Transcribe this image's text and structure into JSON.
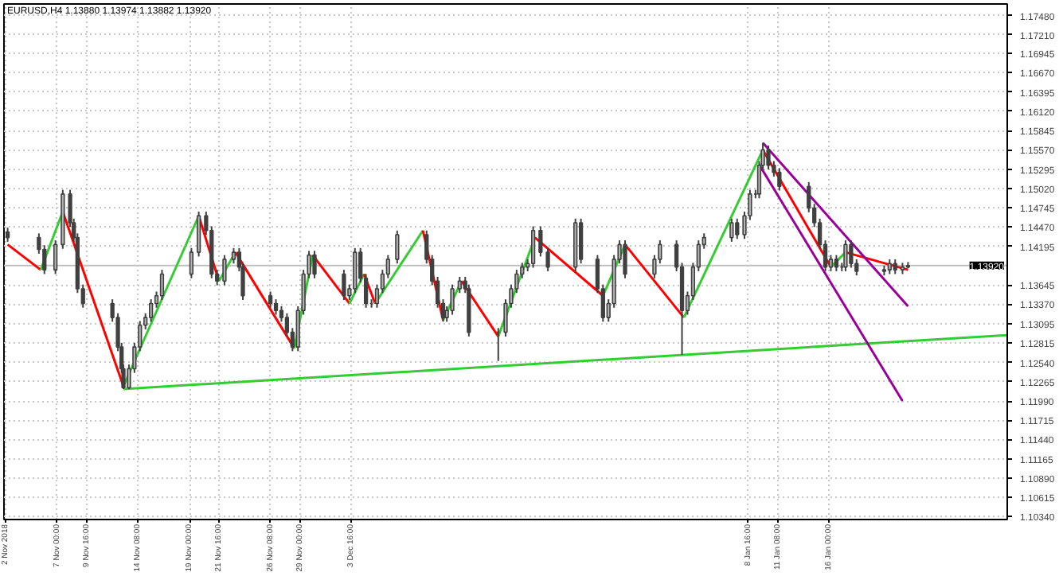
{
  "chart_data": {
    "type": "candlestick",
    "title": "EURUSD,H4  1.13880 1.13974 1.13882 1.13920",
    "color": "#404040",
    "x": [
      "2018-11-02T12:00",
      "2018-11-05T08:00",
      "2018-11-05T20:00",
      "2018-11-06T20:00",
      "2018-11-07T12:00",
      "2018-11-08T04:00",
      "2018-11-08T12:00",
      "2018-11-08T20:00",
      "2018-11-09T08:00",
      "2018-11-12T00:00",
      "2018-11-12T12:00",
      "2018-11-12T20:00",
      "2018-11-13T00:00",
      "2018-11-13T12:00",
      "2018-11-14T00:00",
      "2018-11-14T12:00",
      "2018-11-15T00:00",
      "2018-11-15T12:00",
      "2018-11-16T00:00",
      "2018-11-16T12:00",
      "2018-11-19T04:00",
      "2018-11-19T20:00",
      "2018-11-20T12:00",
      "2018-11-21T00:00",
      "2018-11-21T12:00",
      "2018-11-22T04:00",
      "2018-11-23T00:00",
      "2018-11-23T12:00",
      "2018-11-23T20:00",
      "2018-11-26T08:00",
      "2018-11-26T20:00",
      "2018-11-27T08:00",
      "2018-11-27T20:00",
      "2018-11-28T08:00",
      "2018-11-28T20:00",
      "2018-11-29T08:00",
      "2018-11-29T20:00",
      "2018-11-30T08:00",
      "2018-12-03T00:00",
      "2018-12-03T12:00",
      "2018-12-04T00:00",
      "2018-12-04T12:00",
      "2018-12-05T00:00",
      "2018-12-05T12:00",
      "2018-12-06T00:00",
      "2018-12-06T12:00",
      "2018-12-07T00:00",
      "2018-12-07T20:00",
      "2018-12-10T12:00",
      "2018-12-11T00:00",
      "2018-12-11T12:00",
      "2018-12-12T00:00",
      "2018-12-12T08:00",
      "2018-12-12T20:00",
      "2018-12-13T12:00",
      "2018-12-14T00:00",
      "2018-12-14T08:00",
      "2018-12-17T00:00",
      "2018-12-17T16:00",
      "2018-12-18T04:00",
      "2018-12-18T16:00",
      "2018-12-19T04:00",
      "2018-12-19T16:00",
      "2018-12-20T04:00",
      "2018-12-20T20:00",
      "2018-12-21T12:00",
      "2018-12-24T00:00",
      "2018-12-24T12:00",
      "2018-12-26T00:00",
      "2018-12-26T12:00",
      "2018-12-27T00:00",
      "2018-12-27T12:00",
      "2018-12-28T00:00",
      "2018-12-28T12:00",
      "2018-12-31T04:00",
      "2018-12-31T16:00",
      "2019-01-02T04:00",
      "2019-01-02T16:00",
      "2019-01-03T04:00",
      "2019-01-03T16:00",
      "2019-01-04T04:00",
      "2019-01-04T16:00",
      "2019-01-07T04:00",
      "2019-01-07T16:00",
      "2019-01-08T08:00",
      "2019-01-08T20:00",
      "2019-01-09T08:00",
      "2019-01-09T16:00",
      "2019-01-10T00:00",
      "2019-01-10T12:00",
      "2019-01-11T00:00",
      "2019-01-11T12:00",
      "2019-01-14T04:00",
      "2019-01-14T16:00",
      "2019-01-15T04:00",
      "2019-01-15T16:00",
      "2019-01-16T04:00",
      "2019-01-16T16:00",
      "2019-01-17T04:00",
      "2019-01-17T12:00",
      "2019-01-18T00:00",
      "2019-01-18T12:00",
      "2019-01-21T00:00",
      "2019-01-21T12:00",
      "2019-01-22T00:00",
      "2019-01-22T16:00",
      "2019-01-23T04:00"
    ],
    "ohlc": [
      [
        1.144,
        1.1446,
        1.1426,
        1.1432
      ],
      [
        1.1432,
        1.1438,
        1.1409,
        1.1415
      ],
      [
        1.1415,
        1.1421,
        1.138,
        1.1386
      ],
      [
        1.1386,
        1.1428,
        1.138,
        1.1422
      ],
      [
        1.1422,
        1.15,
        1.1416,
        1.1494
      ],
      [
        1.1494,
        1.15,
        1.1447,
        1.1453
      ],
      [
        1.1453,
        1.1459,
        1.1426,
        1.1432
      ],
      [
        1.1432,
        1.1438,
        1.1353,
        1.1359
      ],
      [
        1.1359,
        1.1365,
        1.1332,
        1.1338
      ],
      [
        1.1338,
        1.1344,
        1.1312,
        1.1318
      ],
      [
        1.1318,
        1.1324,
        1.127,
        1.1276
      ],
      [
        1.1276,
        1.1282,
        1.1239,
        1.1245
      ],
      [
        1.1245,
        1.1251,
        1.1216,
        1.1218
      ],
      [
        1.1218,
        1.1251,
        1.1216,
        1.1245
      ],
      [
        1.1245,
        1.1282,
        1.1239,
        1.1276
      ],
      [
        1.1276,
        1.1313,
        1.127,
        1.1307
      ],
      [
        1.1307,
        1.1324,
        1.1301,
        1.1318
      ],
      [
        1.1318,
        1.1344,
        1.1312,
        1.1338
      ],
      [
        1.1338,
        1.1355,
        1.1332,
        1.1349
      ],
      [
        1.1349,
        1.1386,
        1.1343,
        1.138
      ],
      [
        1.138,
        1.1417,
        1.1374,
        1.1411
      ],
      [
        1.1411,
        1.1469,
        1.1405,
        1.1463
      ],
      [
        1.1463,
        1.1469,
        1.1436,
        1.1442
      ],
      [
        1.1442,
        1.1448,
        1.1374,
        1.138
      ],
      [
        1.138,
        1.1386,
        1.1364,
        1.137
      ],
      [
        1.137,
        1.1407,
        1.1364,
        1.1401
      ],
      [
        1.1401,
        1.1417,
        1.1395,
        1.1411
      ],
      [
        1.1411,
        1.1417,
        1.1384,
        1.139
      ],
      [
        1.139,
        1.1396,
        1.1343,
        1.1349
      ],
      [
        1.1349,
        1.1355,
        1.1332,
        1.1338
      ],
      [
        1.1338,
        1.1344,
        1.1322,
        1.1328
      ],
      [
        1.1328,
        1.1334,
        1.1312,
        1.1318
      ],
      [
        1.1318,
        1.1324,
        1.1291,
        1.1297
      ],
      [
        1.1297,
        1.1303,
        1.127,
        1.1276
      ],
      [
        1.1276,
        1.1334,
        1.127,
        1.1328
      ],
      [
        1.1328,
        1.1386,
        1.1322,
        1.138
      ],
      [
        1.138,
        1.1413,
        1.1374,
        1.1407
      ],
      [
        1.1407,
        1.1413,
        1.1374,
        1.138
      ],
      [
        1.138,
        1.1386,
        1.1343,
        1.1349
      ],
      [
        1.1349,
        1.1365,
        1.1343,
        1.1359
      ],
      [
        1.1359,
        1.1417,
        1.1353,
        1.1411
      ],
      [
        1.1411,
        1.1417,
        1.1368,
        1.1374
      ],
      [
        1.1374,
        1.138,
        1.1332,
        1.1338
      ],
      [
        1.1338,
        1.1344,
        1.1332,
        1.1338
      ],
      [
        1.1338,
        1.1365,
        1.1332,
        1.1359
      ],
      [
        1.1359,
        1.1386,
        1.1353,
        1.138
      ],
      [
        1.138,
        1.1407,
        1.1374,
        1.1401
      ],
      [
        1.1401,
        1.1442,
        1.1395,
        1.1436
      ],
      [
        1.1436,
        1.1442,
        1.1395,
        1.1401
      ],
      [
        1.1401,
        1.1407,
        1.1364,
        1.137
      ],
      [
        1.137,
        1.1376,
        1.1332,
        1.1338
      ],
      [
        1.1338,
        1.1344,
        1.1312,
        1.1318
      ],
      [
        1.1318,
        1.1334,
        1.1312,
        1.1328
      ],
      [
        1.1328,
        1.1365,
        1.1322,
        1.1359
      ],
      [
        1.1359,
        1.1376,
        1.1353,
        1.137
      ],
      [
        1.137,
        1.1376,
        1.1353,
        1.1359
      ],
      [
        1.1359,
        1.1365,
        1.1291,
        1.1297
      ],
      [
        1.1297,
        1.1303,
        1.1256,
        1.1297
      ],
      [
        1.1297,
        1.1344,
        1.1291,
        1.1338
      ],
      [
        1.1338,
        1.1365,
        1.1332,
        1.1359
      ],
      [
        1.1359,
        1.1386,
        1.1353,
        1.138
      ],
      [
        1.138,
        1.1396,
        1.1374,
        1.139
      ],
      [
        1.139,
        1.1401,
        1.1384,
        1.1395
      ],
      [
        1.1395,
        1.1448,
        1.1389,
        1.1442
      ],
      [
        1.1442,
        1.1448,
        1.1405,
        1.1411
      ],
      [
        1.1411,
        1.1417,
        1.1384,
        1.139
      ],
      [
        1.139,
        1.1459,
        1.1384,
        1.1453
      ],
      [
        1.1453,
        1.1459,
        1.1395,
        1.1401
      ],
      [
        1.1401,
        1.1407,
        1.1353,
        1.1359
      ],
      [
        1.1359,
        1.1365,
        1.1312,
        1.1318
      ],
      [
        1.1318,
        1.1344,
        1.1312,
        1.1338
      ],
      [
        1.1338,
        1.1407,
        1.1332,
        1.1401
      ],
      [
        1.1401,
        1.1428,
        1.1395,
        1.1422
      ],
      [
        1.1422,
        1.1428,
        1.1374,
        1.138
      ],
      [
        1.138,
        1.1407,
        1.1374,
        1.1401
      ],
      [
        1.1401,
        1.1428,
        1.1395,
        1.1422
      ],
      [
        1.1422,
        1.1428,
        1.1384,
        1.139
      ],
      [
        1.139,
        1.1396,
        1.1265,
        1.1328
      ],
      [
        1.1328,
        1.1355,
        1.1322,
        1.1349
      ],
      [
        1.1349,
        1.1396,
        1.1343,
        1.139
      ],
      [
        1.139,
        1.1428,
        1.1384,
        1.1422
      ],
      [
        1.1422,
        1.1438,
        1.1416,
        1.1432
      ],
      [
        1.1432,
        1.1459,
        1.1426,
        1.1453
      ],
      [
        1.1453,
        1.1459,
        1.143,
        1.1436
      ],
      [
        1.1436,
        1.1469,
        1.143,
        1.1463
      ],
      [
        1.1463,
        1.15,
        1.1457,
        1.1494
      ],
      [
        1.1494,
        1.15,
        1.1488,
        1.1494
      ],
      [
        1.1494,
        1.1541,
        1.1488,
        1.1535
      ],
      [
        1.1535,
        1.1567,
        1.1529,
        1.1557
      ],
      [
        1.1557,
        1.1563,
        1.1529,
        1.1535
      ],
      [
        1.1535,
        1.1541,
        1.1519,
        1.1525
      ],
      [
        1.1525,
        1.1531,
        1.1499,
        1.1505
      ],
      [
        1.1505,
        1.1511,
        1.1468,
        1.1474
      ],
      [
        1.1474,
        1.148,
        1.1447,
        1.1453
      ],
      [
        1.1453,
        1.1459,
        1.1416,
        1.1422
      ],
      [
        1.1422,
        1.1428,
        1.1384,
        1.139
      ],
      [
        1.139,
        1.1407,
        1.1384,
        1.1401
      ],
      [
        1.1401,
        1.1407,
        1.1384,
        1.139
      ],
      [
        1.139,
        1.1396,
        1.1384,
        1.139
      ],
      [
        1.139,
        1.1428,
        1.1384,
        1.1422
      ],
      [
        1.1422,
        1.1428,
        1.1389,
        1.1395
      ],
      [
        1.1395,
        1.1401,
        1.1378,
        1.1384
      ],
      [
        1.1384,
        1.1392,
        1.1378,
        1.1386
      ],
      [
        1.1386,
        1.1401,
        1.138,
        1.1395
      ],
      [
        1.1395,
        1.1401,
        1.138,
        1.1386
      ],
      [
        1.1386,
        1.1396,
        1.138,
        1.139
      ],
      [
        1.139,
        1.1397,
        1.1388,
        1.1392
      ]
    ],
    "series": [
      {
        "type": "line",
        "color": "#ff0000",
        "x": [
          "2018-11-02T12:00",
          "2018-11-05T12:00"
        ],
        "values": [
          1.1422,
          1.1386
        ]
      },
      {
        "type": "line",
        "color": "#33cc33",
        "x": [
          "2018-11-05T12:00",
          "2018-11-07T12:00"
        ],
        "values": [
          1.1386,
          1.1469
        ]
      },
      {
        "type": "line",
        "color": "#ff0000",
        "x": [
          "2018-11-07T12:00",
          "2018-11-13T00:00"
        ],
        "values": [
          1.1469,
          1.122
        ]
      },
      {
        "type": "line",
        "color": "#33cc33",
        "x": [
          "2018-11-13T00:00",
          "2018-11-19T20:00"
        ],
        "values": [
          1.122,
          1.1463
        ]
      },
      {
        "type": "line",
        "color": "#ff0000",
        "x": [
          "2018-11-19T20:00",
          "2018-11-21T16:00"
        ],
        "values": [
          1.1463,
          1.137
        ]
      },
      {
        "type": "line",
        "color": "#33cc33",
        "x": [
          "2018-11-21T16:00",
          "2018-11-23T04:00"
        ],
        "values": [
          1.137,
          1.1411
        ]
      },
      {
        "type": "line",
        "color": "#ff0000",
        "x": [
          "2018-11-23T04:00",
          "2018-11-28T12:00"
        ],
        "values": [
          1.1411,
          1.1274
        ]
      },
      {
        "type": "line",
        "color": "#33cc33",
        "x": [
          "2018-11-28T12:00",
          "2018-11-30T04:00"
        ],
        "values": [
          1.1274,
          1.1407
        ]
      },
      {
        "type": "line",
        "color": "#ff0000",
        "x": [
          "2018-11-30T04:00",
          "2018-12-03T12:00"
        ],
        "values": [
          1.1407,
          1.1338
        ]
      },
      {
        "type": "line",
        "color": "#33cc33",
        "x": [
          "2018-12-03T12:00",
          "2018-12-04T20:00"
        ],
        "values": [
          1.1338,
          1.138
        ]
      },
      {
        "type": "line",
        "color": "#ff0000",
        "x": [
          "2018-12-04T20:00",
          "2018-12-05T20:00"
        ],
        "values": [
          1.138,
          1.1338
        ]
      },
      {
        "type": "line",
        "color": "#33cc33",
        "x": [
          "2018-12-05T20:00",
          "2018-12-10T04:00"
        ],
        "values": [
          1.1338,
          1.1442
        ]
      },
      {
        "type": "line",
        "color": "#ff0000",
        "x": [
          "2018-12-10T04:00",
          "2018-12-12T00:00"
        ],
        "values": [
          1.1442,
          1.1314
        ]
      },
      {
        "type": "line",
        "color": "#33cc33",
        "x": [
          "2018-12-12T00:00",
          "2018-12-13T16:00"
        ],
        "values": [
          1.1314,
          1.137
        ]
      },
      {
        "type": "line",
        "color": "#ff0000",
        "x": [
          "2018-12-13T16:00",
          "2018-12-17T00:00"
        ],
        "values": [
          1.137,
          1.1291
        ]
      },
      {
        "type": "line",
        "color": "#33cc33",
        "x": [
          "2018-12-17T00:00",
          "2018-12-20T08:00"
        ],
        "values": [
          1.1291,
          1.1432
        ]
      },
      {
        "type": "line",
        "color": "#ff0000",
        "x": [
          "2018-12-20T08:00",
          "2018-12-26T12:00"
        ],
        "values": [
          1.1432,
          1.1349
        ]
      },
      {
        "type": "line",
        "color": "#33cc33",
        "x": [
          "2018-12-26T12:00",
          "2018-12-28T12:00"
        ],
        "values": [
          1.1349,
          1.1422
        ]
      },
      {
        "type": "line",
        "color": "#ff0000",
        "x": [
          "2018-12-28T12:00",
          "2019-01-02T20:00"
        ],
        "values": [
          1.1422,
          1.1318
        ]
      },
      {
        "type": "line",
        "color": "#33cc33",
        "x": [
          "2019-01-02T20:00",
          "2019-01-10T00:00"
        ],
        "values": [
          1.1318,
          1.1557
        ]
      },
      {
        "type": "line",
        "color": "#ff0000",
        "x": [
          "2019-01-10T00:00",
          "2019-01-16T04:00"
        ],
        "values": [
          1.1557,
          1.139
        ]
      },
      {
        "type": "line",
        "color": "#33cc33",
        "x": [
          "2019-01-16T04:00",
          "2019-01-17T12:00"
        ],
        "values": [
          1.139,
          1.1411
        ]
      },
      {
        "type": "line",
        "color": "#ff0000",
        "x": [
          "2019-01-17T12:00",
          "2019-01-23T04:00"
        ],
        "values": [
          1.1411,
          1.1386
        ]
      },
      {
        "type": "line",
        "x": [
          "2018-11-13T00:00",
          "2019-02-01T04:00"
        ],
        "values": [
          1.1216,
          1.1293
        ],
        "color": "#33cc33"
      },
      {
        "type": "line",
        "x": [
          "2019-01-10T00:00",
          "2019-01-23T04:00"
        ],
        "values": [
          1.1567,
          1.1334
        ],
        "color": "#990099"
      },
      {
        "type": "line",
        "x": [
          "2019-01-09T16:00",
          "2019-01-22T16:00"
        ],
        "values": [
          1.1536,
          1.1199
        ],
        "color": "#990099"
      }
    ],
    "ref_lines": [
      {
        "axis": "y",
        "value": 1.1392,
        "label": "1.13920",
        "color": "#c0c0c0"
      }
    ],
    "xlim": [
      "2018-11-02T04:00",
      "2019-02-01T04:00"
    ],
    "ylim": [
      1.103,
      1.1765
    ],
    "xticks": [
      {
        "value": "2018-11-02T08:00",
        "label": "2 Nov 2018"
      },
      {
        "value": "2018-11-07T00:00",
        "label": "7 Nov 00:00"
      },
      {
        "value": "2018-11-09T16:00",
        "label": "9 Nov 16:00"
      },
      {
        "value": "2018-11-14T08:00",
        "label": "14 Nov 08:00"
      },
      {
        "value": "2018-11-19T00:00",
        "label": "19 Nov 00:00"
      },
      {
        "value": "2018-11-21T16:00",
        "label": "21 Nov 16:00"
      },
      {
        "value": "2018-11-26T08:00",
        "label": "26 Nov 08:00"
      },
      {
        "value": "2018-11-29T00:00",
        "label": "29 Nov 00:00"
      },
      {
        "value": "2018-12-03T16:00",
        "label": "3 Dec 16:00"
      },
      {
        "value": "2019-01-08T16:00",
        "label": "8 Jan 16:00"
      },
      {
        "value": "2019-01-11T08:00",
        "label": "11 Jan 08:00"
      },
      {
        "value": "2019-01-16T00:00",
        "label": "16 Jan 00:00"
      }
    ],
    "yticks": [
      {
        "value": 1.1748,
        "label": "1.17480"
      },
      {
        "value": 1.1721,
        "label": "1.17210"
      },
      {
        "value": 1.16945,
        "label": "1.16945"
      },
      {
        "value": 1.1667,
        "label": "1.16670"
      },
      {
        "value": 1.16395,
        "label": "1.16395"
      },
      {
        "value": 1.1612,
        "label": "1.16120"
      },
      {
        "value": 1.15845,
        "label": "1.15845"
      },
      {
        "value": 1.1557,
        "label": "1.15570"
      },
      {
        "value": 1.15295,
        "label": "1.15295"
      },
      {
        "value": 1.1502,
        "label": "1.15020"
      },
      {
        "value": 1.14745,
        "label": "1.14745"
      },
      {
        "value": 1.1447,
        "label": "1.14470"
      },
      {
        "value": 1.14195,
        "label": "1.14195"
      },
      {
        "value": 1.13645,
        "label": "1.13645"
      },
      {
        "value": 1.1337,
        "label": "1.13370"
      },
      {
        "value": 1.13095,
        "label": "1.13095"
      },
      {
        "value": 1.12815,
        "label": "1.12815"
      },
      {
        "value": 1.1254,
        "label": "1.12540"
      },
      {
        "value": 1.12265,
        "label": "1.12265"
      },
      {
        "value": 1.1199,
        "label": "1.11990"
      },
      {
        "value": 1.11715,
        "label": "1.11715"
      },
      {
        "value": 1.1144,
        "label": "1.11440"
      },
      {
        "value": 1.11165,
        "label": "1.11165"
      },
      {
        "value": 1.1089,
        "label": "1.10890"
      },
      {
        "value": 1.10615,
        "label": "1.10615"
      },
      {
        "value": 1.1034,
        "label": "1.10340"
      }
    ],
    "grid": true
  }
}
